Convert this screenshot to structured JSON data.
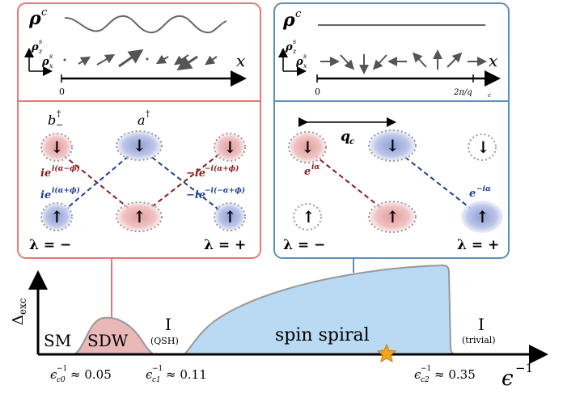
{
  "colors": {
    "red_panel": "#e87777",
    "blue_panel": "#5e8fbb",
    "red_fill": "#e8b7b7",
    "blue_fill": "#b9daf2",
    "red_dash": "#8b1a1a",
    "blue_dash": "#1f3f95",
    "arrow_gray": "#555555",
    "star": "#f6a21c"
  },
  "left_panel": {
    "rho_c": "ρ",
    "rho_c_sup": "c",
    "rho_z": "ρ",
    "rho_z_sub": "z",
    "rho_z_sup": "s",
    "rho_x": "ρ",
    "rho_x_sub": "x",
    "rho_x_sup": "s",
    "x_axis": "x",
    "origin": "0",
    "b_dag": "b",
    "b_dag_sup": "†",
    "b_dag_sub": "−",
    "a_dag": "a",
    "a_dag_sup": "†",
    "coup_top_left": "ie",
    "coup_top_left_sup": "i(α−ϕ)",
    "coup_bot_left": "ie",
    "coup_bot_left_sup": "i(α+ϕ)",
    "coup_top_right": "−ie",
    "coup_top_right_sup": "−i(α+ϕ)",
    "coup_bot_right": "−ie",
    "coup_bot_right_sup": "−i(−α+ϕ)",
    "lambda_minus": "λ = −",
    "lambda_plus": "λ = +",
    "spin_down": "↓",
    "spin_up": "↑"
  },
  "right_panel": {
    "rho_c": "ρ",
    "rho_c_sup": "c",
    "x_axis": "x",
    "origin": "0",
    "period": "2π/q",
    "period_sub": "c",
    "q_label": "q",
    "q_sub": "c",
    "coup_left": "e",
    "coup_left_sup": "iα",
    "coup_right": "e",
    "coup_right_sup": "−iα",
    "lambda_minus": "λ = −",
    "lambda_plus": "λ = +"
  },
  "phase_diagram": {
    "y_label": "Δ",
    "y_label_sub": "exc",
    "x_label": "ϵ",
    "x_label_sup": "−1",
    "regions": {
      "sm": "SM",
      "sdw": "SDW",
      "qsh": "I",
      "qsh_sub": "(QSH)",
      "spiral": "spin spiral",
      "trivial": "I",
      "trivial_sub": "(trivial)"
    },
    "ticks": [
      {
        "eps": "ϵ",
        "sup": "−1",
        "sub": "c0",
        "value": "≈ 0.05"
      },
      {
        "eps": "ϵ",
        "sup": "−1",
        "sub": "c1",
        "value": "≈ 0.11"
      },
      {
        "eps": "ϵ",
        "sup": "−1",
        "sub": "c2",
        "value": "≈ 0.35"
      }
    ]
  }
}
